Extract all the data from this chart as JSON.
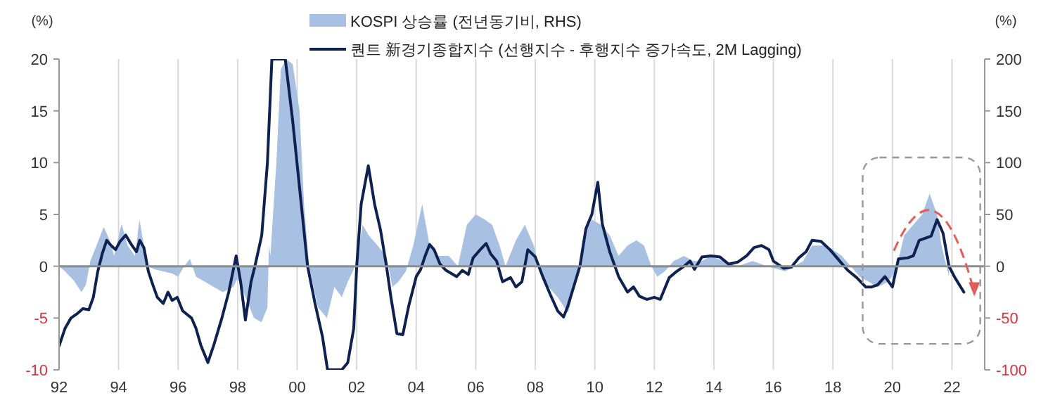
{
  "chart_data": {
    "type": "line",
    "xlim": [
      1992,
      2023.1
    ],
    "xticks": [
      {
        "value": 1992,
        "label": "92"
      },
      {
        "value": 1994,
        "label": "94"
      },
      {
        "value": 1996,
        "label": "96"
      },
      {
        "value": 1998,
        "label": "98"
      },
      {
        "value": 2000,
        "label": "00"
      },
      {
        "value": 2002,
        "label": "02"
      },
      {
        "value": 2004,
        "label": "04"
      },
      {
        "value": 2006,
        "label": "06"
      },
      {
        "value": 2008,
        "label": "08"
      },
      {
        "value": 2010,
        "label": "10"
      },
      {
        "value": 2012,
        "label": "12"
      },
      {
        "value": 2014,
        "label": "14"
      },
      {
        "value": 2016,
        "label": "16"
      },
      {
        "value": 2018,
        "label": "18"
      },
      {
        "value": 2020,
        "label": "20"
      },
      {
        "value": 2022,
        "label": "22"
      }
    ],
    "ylim": [
      -10,
      20
    ],
    "yticks": [
      -10,
      -5,
      0,
      5,
      10,
      15,
      20
    ],
    "y2lim": [
      -100,
      200
    ],
    "y2ticks": [
      -100,
      -50,
      0,
      50,
      100,
      150,
      200
    ],
    "ylabel": "(%)",
    "y2label": "(%)",
    "grid": "x",
    "legend": "top",
    "ref_lines": [
      {
        "axis": "y",
        "value": 0,
        "color": "#8c8c8c"
      }
    ],
    "series": [
      {
        "name": "KOSPI 상승률 (전년동기비, RHS)",
        "type": "area",
        "axis": "y2",
        "color": "#a8c0e2",
        "x": [
          1992.0,
          1992.2,
          1992.5,
          1992.75,
          1992.9,
          1993.05,
          1993.3,
          1993.5,
          1993.7,
          1993.85,
          1994.1,
          1994.3,
          1994.55,
          1994.7,
          1994.85,
          1995.0,
          1995.2,
          1995.5,
          1995.8,
          1996.0,
          1996.2,
          1996.4,
          1996.6,
          1996.9,
          1997.2,
          1997.5,
          1997.85,
          1998.0,
          1998.2,
          1998.35,
          1998.55,
          1998.8,
          1999.0,
          1999.05,
          1999.1,
          1999.3,
          1999.45,
          1999.63,
          1999.85,
          2000.08,
          2000.23,
          2000.4,
          2000.7,
          2001.0,
          2001.25,
          2001.5,
          2001.7,
          2001.95,
          2002.2,
          2002.4,
          2002.7,
          2003.0,
          2003.2,
          2003.4,
          2003.65,
          2003.9,
          2004.2,
          2004.45,
          2004.75,
          2005.1,
          2005.4,
          2005.55,
          2005.7,
          2006.0,
          2006.3,
          2006.55,
          2006.8,
          2007.0,
          2007.35,
          2007.65,
          2007.95,
          2008.15,
          2008.45,
          2008.75,
          2009.1,
          2009.4,
          2009.65,
          2009.9,
          2010.2,
          2010.5,
          2010.8,
          2011.1,
          2011.4,
          2011.65,
          2011.9,
          2012.1,
          2012.35,
          2012.65,
          2013.0,
          2013.3,
          2013.6,
          2013.9,
          2014.3,
          2014.8,
          2015.3,
          2015.8,
          2016.4,
          2017.0,
          2017.3,
          2017.8,
          2018.3,
          2018.6,
          2018.9,
          2019.2,
          2019.5,
          2019.85,
          2020.1,
          2020.4,
          2020.7,
          2021.0,
          2021.25,
          2021.5,
          2021.65,
          2021.9
        ],
        "values": [
          0,
          -5,
          -14,
          -25,
          -18,
          5,
          23,
          38,
          25,
          10,
          41,
          20,
          10,
          45,
          20,
          0,
          -3,
          -5,
          -7,
          -10,
          0,
          7,
          -10,
          -15,
          -20,
          -25,
          -20,
          -12,
          -25,
          -36,
          -50,
          -54,
          -40,
          20,
          10,
          100,
          190,
          200,
          195,
          150,
          60,
          0,
          -40,
          -50,
          -20,
          -30,
          -15,
          0,
          40,
          30,
          20,
          10,
          -20,
          -15,
          -5,
          20,
          60,
          20,
          10,
          10,
          0,
          20,
          40,
          50,
          45,
          40,
          20,
          0,
          25,
          40,
          20,
          -5,
          -20,
          -30,
          -45,
          -10,
          30,
          45,
          40,
          30,
          10,
          20,
          25,
          20,
          0,
          -10,
          -5,
          5,
          10,
          5,
          5,
          10,
          5,
          0,
          5,
          0,
          -5,
          5,
          20,
          20,
          10,
          0,
          -10,
          -15,
          -20,
          -15,
          -5,
          30,
          40,
          50,
          70,
          50,
          20,
          -10
        ]
      },
      {
        "name": "퀀트 新경기종합지수 (선행지수 - 후행지수 증가속도, 2M Lagging)",
        "color": "#0e2150",
        "x": [
          1992.0,
          1992.2,
          1992.4,
          1992.6,
          1992.8,
          1993.0,
          1993.15,
          1993.3,
          1993.45,
          1993.6,
          1993.75,
          1993.9,
          1994.05,
          1994.24,
          1994.45,
          1994.6,
          1994.71,
          1994.85,
          1995.0,
          1995.15,
          1995.3,
          1995.5,
          1995.66,
          1995.8,
          1995.97,
          1996.15,
          1996.45,
          1996.6,
          1996.76,
          1997.0,
          1997.2,
          1997.47,
          1997.7,
          1997.95,
          1998.1,
          1998.26,
          1998.45,
          1998.58,
          1998.81,
          1999.0,
          1999.15,
          1999.6,
          1999.85,
          2000.1,
          2000.35,
          2000.6,
          2000.85,
          2001.02,
          2001.5,
          2001.7,
          2001.9,
          2002.0,
          2002.15,
          2002.39,
          2002.6,
          2002.8,
          2003.0,
          2003.15,
          2003.35,
          2003.55,
          2003.75,
          2004.0,
          2004.15,
          2004.3,
          2004.45,
          2004.6,
          2004.8,
          2005.0,
          2005.36,
          2005.55,
          2005.75,
          2005.91,
          2006.15,
          2006.35,
          2006.5,
          2006.7,
          2006.9,
          2007.17,
          2007.35,
          2007.55,
          2007.75,
          2008.0,
          2008.25,
          2008.5,
          2008.75,
          2008.95,
          2009.1,
          2009.5,
          2009.7,
          2009.9,
          2010.1,
          2010.25,
          2010.5,
          2010.8,
          2011.1,
          2011.3,
          2011.5,
          2011.75,
          2012.0,
          2012.2,
          2012.5,
          2012.75,
          2013.0,
          2013.2,
          2013.35,
          2013.6,
          2013.9,
          2014.2,
          2014.5,
          2014.8,
          2015.1,
          2015.35,
          2015.6,
          2015.85,
          2016.0,
          2016.35,
          2016.6,
          2016.85,
          2017.1,
          2017.3,
          2017.6,
          2017.9,
          2018.2,
          2018.5,
          2018.8,
          2019.1,
          2019.3,
          2019.5,
          2019.75,
          2020.0,
          2020.2,
          2020.5,
          2020.7,
          2020.9,
          2021.3,
          2021.5,
          2021.7,
          2021.9,
          2022.1,
          2022.4
        ],
        "values": [
          -7.7,
          -6.0,
          -5.0,
          -4.6,
          -4.1,
          -4.2,
          -3.0,
          -0.5,
          1.2,
          2.5,
          2.0,
          1.6,
          2.4,
          3.0,
          2.0,
          1.4,
          2.5,
          1.8,
          -0.5,
          -1.8,
          -3.0,
          -3.6,
          -2.5,
          -3.3,
          -3.0,
          -4.3,
          -5.0,
          -6.0,
          -7.6,
          -9.3,
          -7.6,
          -5.0,
          -2.5,
          1.0,
          -1.5,
          -5.2,
          -1.5,
          0.0,
          3.0,
          10.0,
          20.0,
          20.0,
          14.0,
          7.0,
          0.0,
          -3.6,
          -6.8,
          -10.0,
          -10.0,
          -9.3,
          -6.0,
          0.0,
          6.0,
          9.7,
          6.0,
          3.5,
          0.0,
          -3.0,
          -6.5,
          -6.6,
          -3.8,
          -1.0,
          -0.3,
          1.0,
          2.1,
          1.6,
          0.2,
          -0.4,
          -1.0,
          -0.4,
          -0.8,
          0.8,
          1.6,
          2.2,
          1.2,
          0.5,
          -1.5,
          -1.1,
          -2.0,
          -1.5,
          1.6,
          0.9,
          -1.0,
          -2.7,
          -4.3,
          -4.9,
          -3.8,
          0.0,
          3.6,
          5.0,
          8.1,
          4.1,
          1.4,
          -1.0,
          -2.5,
          -2.0,
          -2.9,
          -3.2,
          -3.0,
          -3.2,
          -1.1,
          -0.5,
          0.0,
          0.5,
          -0.3,
          0.9,
          1.0,
          0.9,
          0.2,
          0.4,
          1.0,
          1.8,
          2.0,
          1.6,
          0.5,
          -0.2,
          -0.1,
          0.8,
          1.4,
          2.5,
          2.4,
          1.6,
          0.6,
          -0.4,
          -1.1,
          -2.0,
          -2.0,
          -1.8,
          -1.0,
          -2.0,
          0.7,
          0.8,
          1.0,
          2.5,
          2.9,
          4.5,
          3.2,
          0.0,
          -1.1,
          -2.5
        ]
      }
    ]
  }
}
